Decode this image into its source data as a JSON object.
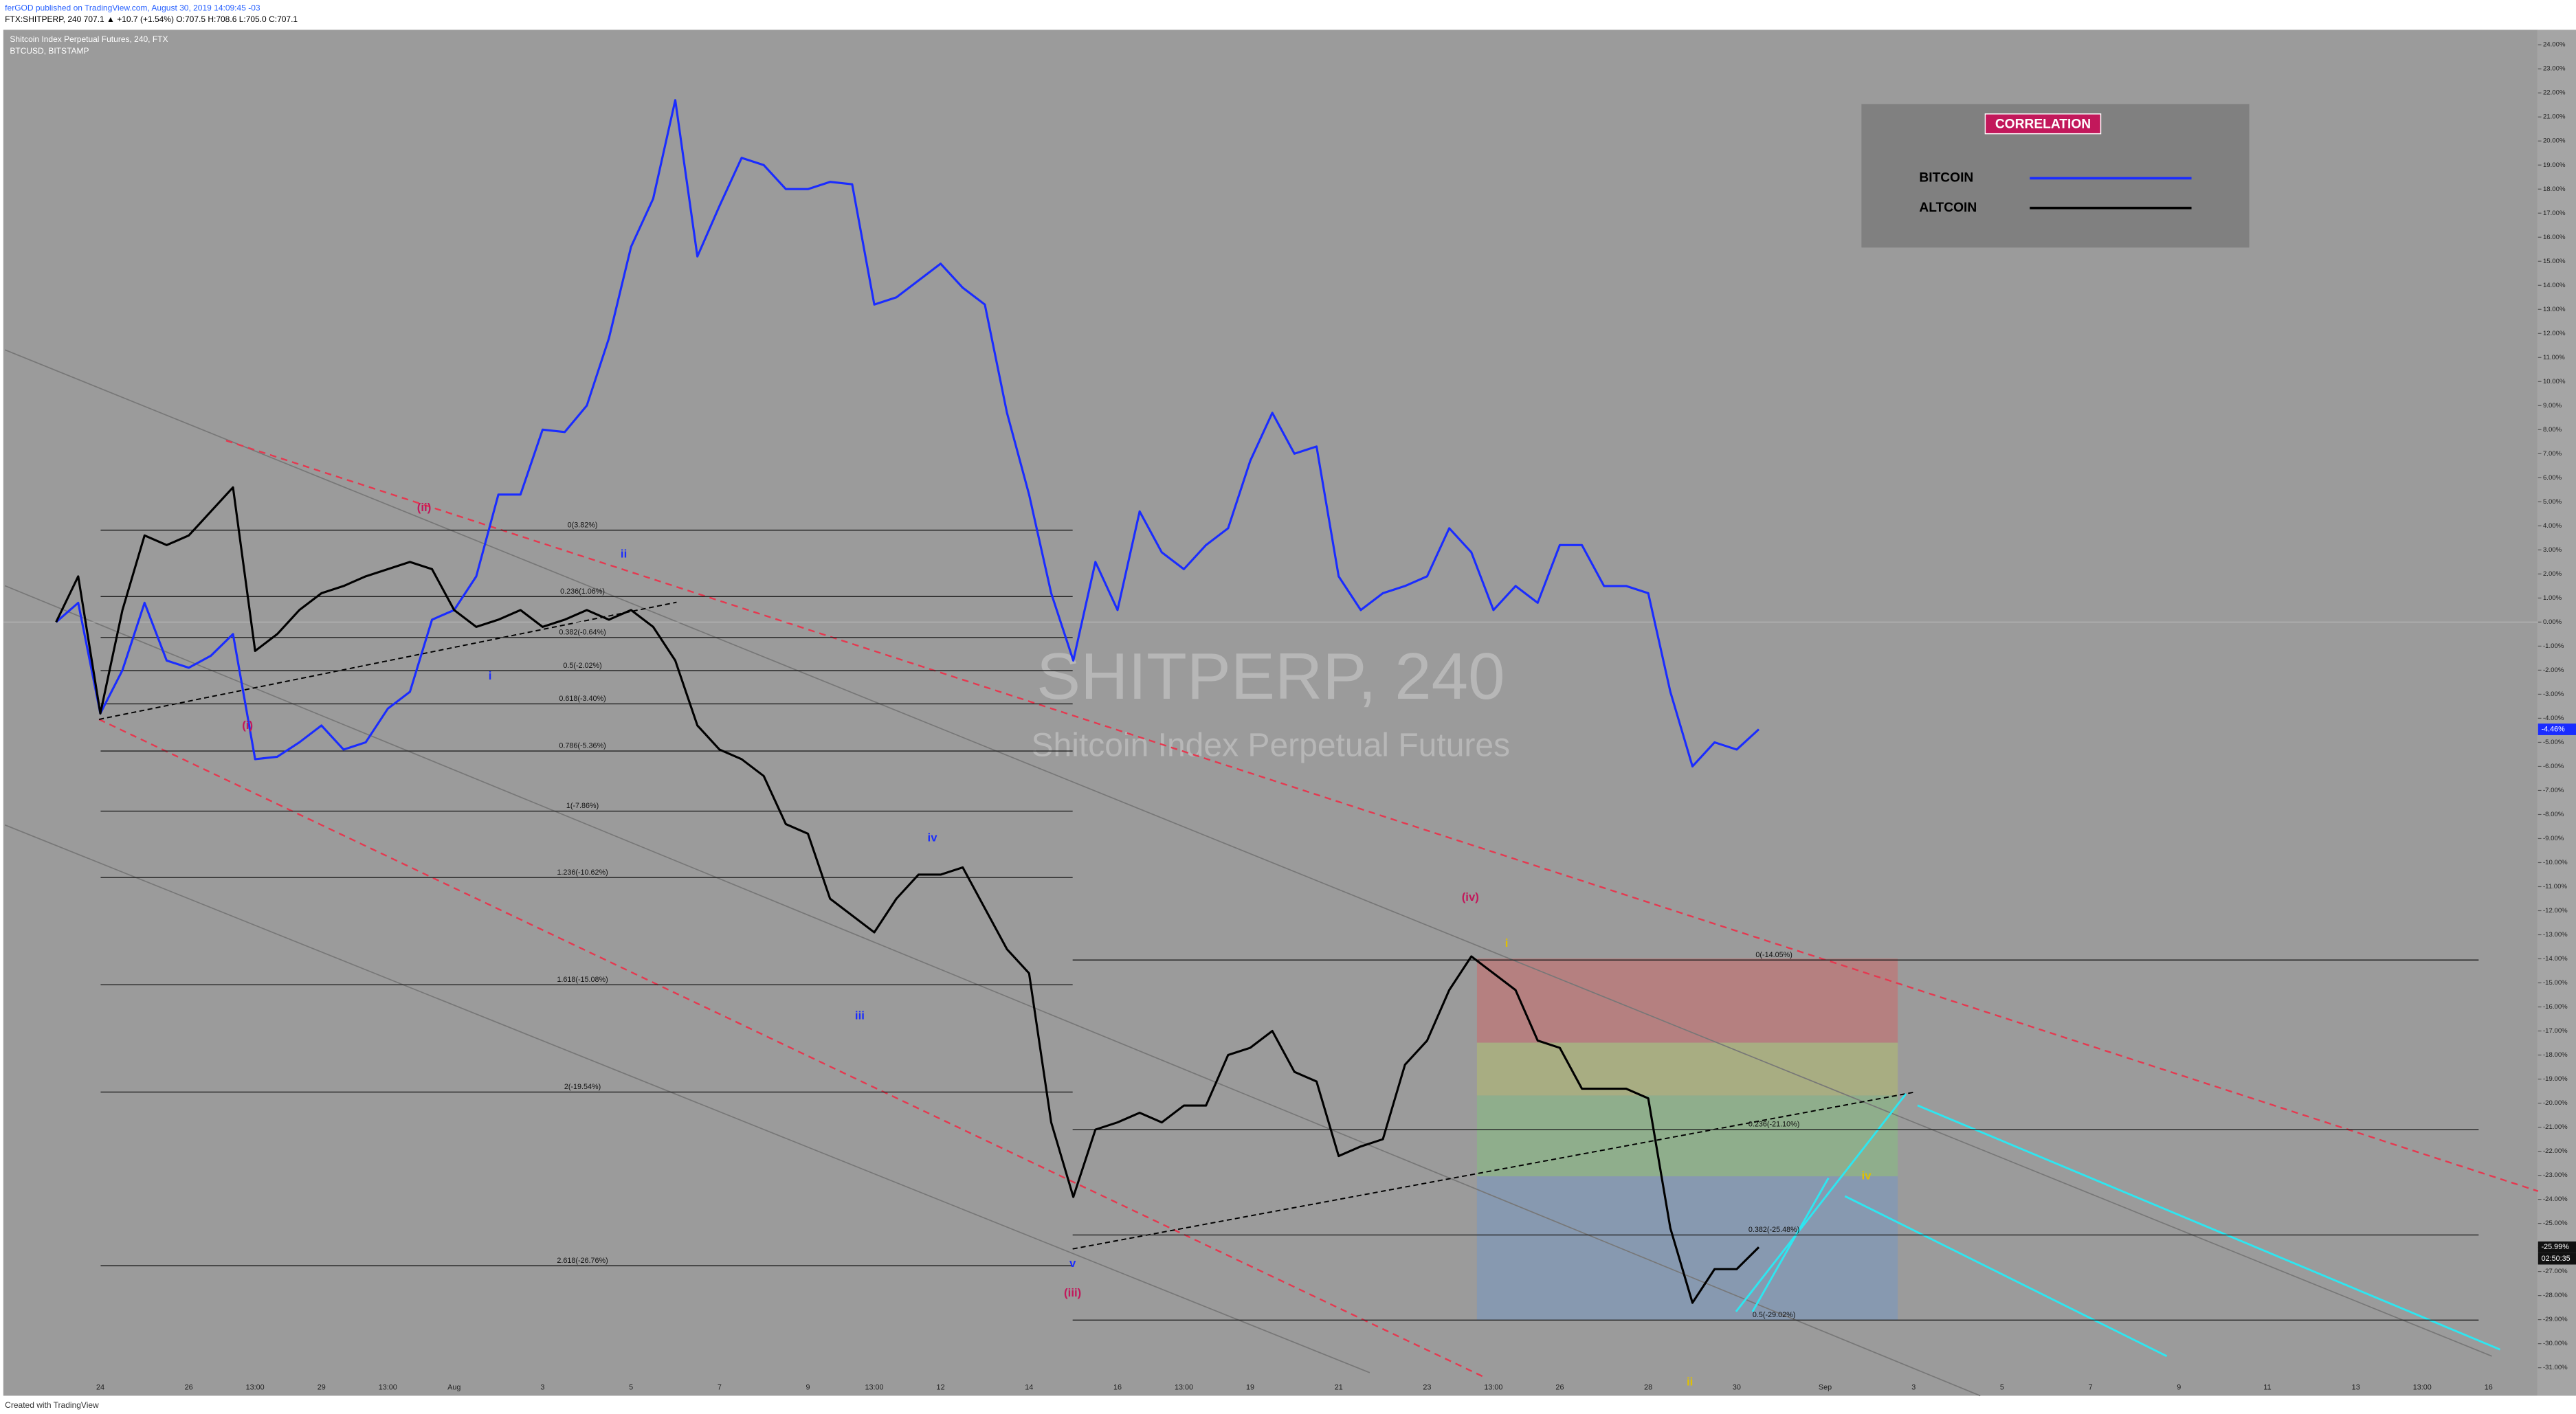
{
  "header": {
    "publisher": "ferGOD published on TradingView.com, August 30, 2019 14:09:45 -03",
    "symbol_line": "FTX:SHITPERP, 240 707.1 ▲ +10.7 (+1.54%) O:707.5 H:708.6 L:705.0 C:707.1",
    "main_series": "Shitcoin Index Perpetual Futures, 240, FTX",
    "overlay_series": "BTCUSD, BITSTAMP"
  },
  "watermark": {
    "title": "SHITPERP, 240",
    "subtitle": "Shitcoin Index Perpetual Futures"
  },
  "footer": "Created with TradingView",
  "chart_data": {
    "type": "line",
    "legend_title": "CORRELATION",
    "grid": false,
    "categories": [
      null,
      null,
      "24",
      null,
      null,
      null,
      "26",
      null,
      null,
      "13:00",
      null,
      null,
      "29",
      null,
      null,
      "13:00",
      null,
      null,
      "Aug",
      null,
      null,
      null,
      "3",
      null,
      null,
      null,
      "5",
      null,
      null,
      null,
      "7",
      null,
      null,
      null,
      "9",
      null,
      null,
      "13:00",
      null,
      null,
      "12",
      null,
      null,
      null,
      "14",
      null,
      null,
      null,
      "16",
      null,
      null,
      "13:00",
      null,
      null,
      "19",
      null,
      null,
      null,
      "21",
      null,
      null,
      null,
      "23",
      null,
      null,
      "13:00",
      null,
      null,
      "26",
      null,
      null,
      null,
      "28",
      null,
      null,
      null,
      "30",
      null,
      null,
      null,
      "Sep",
      null,
      null,
      null,
      "3",
      null,
      null,
      null,
      "5",
      null,
      null,
      null,
      "7",
      null,
      null,
      null,
      "9",
      null,
      null,
      null,
      "11",
      null,
      null,
      null,
      "13",
      null,
      null,
      "13:00",
      null,
      null,
      "16"
    ],
    "series": [
      {
        "name": "BITCOIN",
        "color": "#1a2cff",
        "values": [
          0,
          0.8,
          -3.8,
          -2,
          0.8,
          -1.6,
          -1.9,
          -1.4,
          -0.5,
          -5.7,
          -5.6,
          -5,
          -4.3,
          -5.3,
          -5,
          -3.6,
          -2.9,
          0.1,
          0.5,
          1.9,
          5.3,
          5.3,
          8,
          7.9,
          9,
          11.8,
          15.6,
          17.6,
          21.7,
          15.2,
          17.3,
          19.3,
          19,
          18,
          18,
          18.3,
          18.2,
          13.2,
          13.5,
          14.2,
          14.9,
          13.9,
          13.2,
          8.7,
          5.3,
          1.2,
          -1.6,
          2.5,
          0.5,
          4.6,
          2.9,
          2.2,
          3.2,
          3.9,
          6.7,
          8.7,
          7,
          7.3,
          1.9,
          0.5,
          1.2,
          1.5,
          1.9,
          3.9,
          2.9,
          0.5,
          1.5,
          0.8,
          3.2,
          3.2,
          1.5,
          1.5,
          1.2,
          -2.9,
          -6,
          -5,
          -5.3,
          -4.46,
          null,
          null,
          null,
          null,
          null,
          null,
          null,
          null,
          null,
          null,
          null,
          null,
          null,
          null,
          null,
          null,
          null,
          null,
          null,
          null,
          null,
          null,
          null,
          null,
          null,
          null,
          null,
          null,
          null,
          null,
          null,
          null,
          null
        ]
      },
      {
        "name": "ALTCOIN",
        "color": "#000000",
        "values": [
          0,
          1.9,
          -3.8,
          0.5,
          3.6,
          3.2,
          3.6,
          4.6,
          5.6,
          -1.2,
          -0.5,
          0.5,
          1.2,
          1.5,
          1.9,
          2.2,
          2.5,
          2.2,
          0.5,
          -0.2,
          0.1,
          0.5,
          -0.2,
          0.1,
          0.5,
          0.1,
          0.5,
          -0.2,
          -1.6,
          -4.3,
          -5.3,
          -5.7,
          -6.4,
          -8.4,
          -8.8,
          -11.5,
          -12.2,
          -12.9,
          -11.5,
          -10.5,
          -10.5,
          -10.2,
          -11.9,
          -13.6,
          -14.6,
          -20.8,
          -23.9,
          -21.1,
          -20.8,
          -20.4,
          -20.8,
          -20.1,
          -20.1,
          -18,
          -17.7,
          -17,
          -18.7,
          -19.1,
          -22.2,
          -21.8,
          -21.5,
          -18.4,
          -17.4,
          -15.3,
          -13.9,
          -14.6,
          -15.3,
          -17.4,
          -17.7,
          -19.4,
          -19.4,
          -19.4,
          -19.8,
          -25.2,
          -28.3,
          -26.9,
          -26.9,
          -25.99,
          null,
          null,
          null,
          null,
          null,
          null,
          null,
          null,
          null,
          null,
          null,
          null,
          null,
          null,
          null,
          null,
          null,
          null,
          null,
          null,
          null,
          null,
          null,
          null,
          null,
          null,
          null,
          null,
          null,
          null,
          null,
          null,
          null
        ]
      }
    ],
    "price_labels": [
      "-4.46%",
      "-25.99%"
    ],
    "countdown": "02:50:35",
    "ylim": [
      -32,
      25
    ],
    "yticks": [
      {
        "value": 24,
        "label": "24.00%"
      },
      {
        "value": 23,
        "label": "23.00%"
      },
      {
        "value": 22,
        "label": "22.00%"
      },
      {
        "value": 21,
        "label": "21.00%"
      },
      {
        "value": 20,
        "label": "20.00%"
      },
      {
        "value": 19,
        "label": "19.00%"
      },
      {
        "value": 18,
        "label": "18.00%"
      },
      {
        "value": 17,
        "label": "17.00%"
      },
      {
        "value": 16,
        "label": "16.00%"
      },
      {
        "value": 15,
        "label": "15.00%"
      },
      {
        "value": 14,
        "label": "14.00%"
      },
      {
        "value": 13,
        "label": "13.00%"
      },
      {
        "value": 12,
        "label": "12.00%"
      },
      {
        "value": 11,
        "label": "11.00%"
      },
      {
        "value": 10,
        "label": "10.00%"
      },
      {
        "value": 9,
        "label": "9.00%"
      },
      {
        "value": 8,
        "label": "8.00%"
      },
      {
        "value": 7,
        "label": "7.00%"
      },
      {
        "value": 6,
        "label": "6.00%"
      },
      {
        "value": 5,
        "label": "5.00%"
      },
      {
        "value": 4,
        "label": "4.00%"
      },
      {
        "value": 3,
        "label": "3.00%"
      },
      {
        "value": 2,
        "label": "2.00%"
      },
      {
        "value": 1,
        "label": "1.00%"
      },
      {
        "value": 0,
        "label": "0.00%"
      },
      {
        "value": -1,
        "label": "-1.00%"
      },
      {
        "value": -2,
        "label": "-2.00%"
      },
      {
        "value": -3,
        "label": "-3.00%"
      },
      {
        "value": -4,
        "label": "-4.00%"
      },
      {
        "value": -5,
        "label": "-5.00%"
      },
      {
        "value": -6,
        "label": "-6.00%"
      },
      {
        "value": -7,
        "label": "-7.00%"
      },
      {
        "value": -8,
        "label": "-8.00%"
      },
      {
        "value": -9,
        "label": "-9.00%"
      },
      {
        "value": -10,
        "label": "-10.00%"
      },
      {
        "value": -11,
        "label": "-11.00%"
      },
      {
        "value": -12,
        "label": "-12.00%"
      },
      {
        "value": -13,
        "label": "-13.00%"
      },
      {
        "value": -14,
        "label": "-14.00%"
      },
      {
        "value": -15,
        "label": "-15.00%"
      },
      {
        "value": -16,
        "label": "-16.00%"
      },
      {
        "value": -17,
        "label": "-17.00%"
      },
      {
        "value": -18,
        "label": "-18.00%"
      },
      {
        "value": -19,
        "label": "-19.00%"
      },
      {
        "value": -20,
        "label": "-20.00%"
      },
      {
        "value": -21,
        "label": "-21.00%"
      },
      {
        "value": -22,
        "label": "-22.00%"
      },
      {
        "value": -23,
        "label": "-23.00%"
      },
      {
        "value": -24,
        "label": "-24.00%"
      },
      {
        "value": -25,
        "label": "-25.00%"
      },
      {
        "value": -26,
        "label": "-26.00%"
      },
      {
        "value": -27,
        "label": "-27.00%"
      },
      {
        "value": -28,
        "label": "-28.00%"
      },
      {
        "value": -29,
        "label": "-29.00%"
      },
      {
        "value": -30,
        "label": "-30.00%"
      },
      {
        "value": -31,
        "label": "-31.00%"
      }
    ],
    "fib_levels": [
      {
        "label": "0(3.82%)",
        "value": 3.82
      },
      {
        "label": "0.236(1.06%)",
        "value": 1.06
      },
      {
        "label": "0.382(-0.64%)",
        "value": -0.64
      },
      {
        "label": "0.5(-2.02%)",
        "value": -2.02
      },
      {
        "label": "0.618(-3.40%)",
        "value": -3.4
      },
      {
        "label": "0.786(-5.36%)",
        "value": -5.36
      },
      {
        "label": "1(-7.86%)",
        "value": -7.86
      },
      {
        "label": "1.236(-10.62%)",
        "value": -10.62
      },
      {
        "label": "1.618(-15.08%)",
        "value": -15.08
      },
      {
        "label": "2(-19.54%)",
        "value": -19.54
      },
      {
        "label": "2.618(-26.76%)",
        "value": -26.76
      }
    ],
    "fib_levels_2": [
      {
        "label": "0(-14.05%)",
        "value": -14.05
      },
      {
        "label": "0.236(-21.10%)",
        "value": -21.1
      },
      {
        "label": "0.382(-25.48%)",
        "value": -25.48
      },
      {
        "label": "0.5(-29.02%)",
        "value": -29.02
      }
    ],
    "annotations": [
      {
        "text": "(ii)",
        "color": "#c2185b"
      },
      {
        "text": "ii",
        "color": "#1a2cff"
      },
      {
        "text": "(i)",
        "color": "#c2185b"
      },
      {
        "text": "i",
        "color": "#1a2cff"
      },
      {
        "text": "iv",
        "color": "#1a2cff"
      },
      {
        "text": "iii",
        "color": "#1a2cff"
      },
      {
        "text": "v",
        "color": "#1a2cff"
      },
      {
        "text": "(iii)",
        "color": "#c2185b"
      },
      {
        "text": "(iv)",
        "color": "#c2185b"
      },
      {
        "text": "i",
        "color": "#e0c000"
      },
      {
        "text": "ii",
        "color": "#e0c000"
      },
      {
        "text": "iv",
        "color": "#e0c000"
      }
    ]
  }
}
